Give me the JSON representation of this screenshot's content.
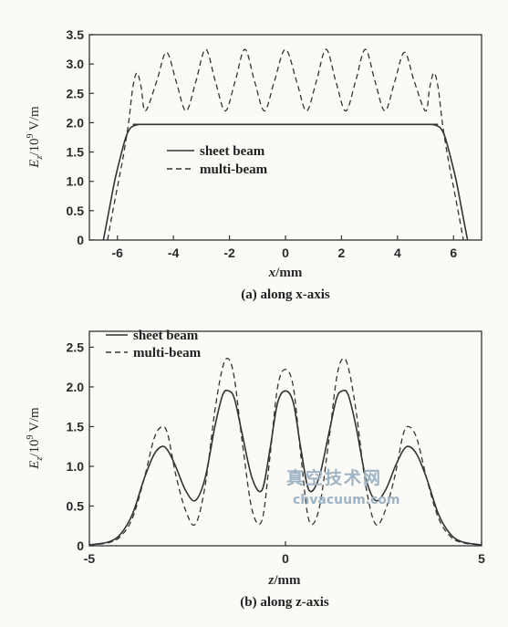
{
  "watermark": {
    "line1": "真空技术网",
    "line2": "chvacuum.com"
  },
  "chart_data": [
    {
      "type": "line",
      "caption": "(a) along x-axis",
      "xlabel_var": "x",
      "xlabel_unit": "/mm",
      "ylabel_var": "E",
      "ylabel_sub": "z",
      "ylabel_unit": "/10",
      "ylabel_exp": "9",
      "ylabel_unit2": " V/m",
      "xlim": [
        -7,
        7
      ],
      "ylim": [
        0,
        3.5
      ],
      "xticks": [
        "-6",
        "-4",
        "-2",
        "0",
        "2",
        "4",
        "6"
      ],
      "xtick_values": [
        -6,
        -4,
        -2,
        0,
        2,
        4,
        6
      ],
      "yticks": [
        "0",
        "0.5",
        "1.0",
        "1.5",
        "2.0",
        "2.5",
        "3.0",
        "3.5"
      ],
      "ytick_values": [
        0,
        0.5,
        1.0,
        1.5,
        2.0,
        2.5,
        3.0,
        3.5
      ],
      "legend_position": "center",
      "series": [
        {
          "name": "sheet beam",
          "style": "solid",
          "x": [
            -6.5,
            -6.3,
            -6.1,
            -5.9,
            -5.7,
            -5.55,
            -5.4,
            -5.2,
            -5.0,
            0,
            5.0,
            5.2,
            5.4,
            5.55,
            5.7,
            5.9,
            6.1,
            6.3,
            6.5
          ],
          "y": [
            0,
            0.5,
            1.0,
            1.4,
            1.75,
            1.9,
            1.95,
            1.97,
            1.97,
            1.97,
            1.97,
            1.97,
            1.95,
            1.9,
            1.75,
            1.4,
            1.0,
            0.5,
            0
          ]
        },
        {
          "name": "multi-beam",
          "style": "dashed",
          "x": [
            -6.35,
            -6.2,
            -6.0,
            -5.8,
            -5.6,
            -5.45,
            -5.3,
            -5.15,
            -5.0,
            -4.6,
            -4.25,
            -3.9,
            -3.55,
            -3.2,
            -2.85,
            -2.5,
            -2.15,
            -1.8,
            -1.45,
            -1.1,
            -0.75,
            -0.4,
            0,
            0.4,
            0.75,
            1.1,
            1.45,
            1.8,
            2.15,
            2.5,
            2.85,
            3.2,
            3.55,
            3.9,
            4.25,
            4.6,
            5.0,
            5.15,
            5.3,
            5.45,
            5.6,
            5.8,
            6.0,
            6.2,
            6.35
          ],
          "y": [
            0,
            0.4,
            0.9,
            1.4,
            2.0,
            2.6,
            2.85,
            2.6,
            2.2,
            2.7,
            3.2,
            2.7,
            2.2,
            2.7,
            3.25,
            2.7,
            2.2,
            2.7,
            3.25,
            2.7,
            2.2,
            2.7,
            3.25,
            2.7,
            2.2,
            2.7,
            3.25,
            2.7,
            2.2,
            2.7,
            3.25,
            2.7,
            2.2,
            2.7,
            3.2,
            2.7,
            2.2,
            2.6,
            2.85,
            2.6,
            2.0,
            1.4,
            0.9,
            0.4,
            0
          ]
        }
      ]
    },
    {
      "type": "line",
      "caption": "(b) along z-axis",
      "xlabel_var": "z",
      "xlabel_unit": "/mm",
      "ylabel_var": "E",
      "ylabel_sub": "z",
      "ylabel_unit": "/10",
      "ylabel_exp": "9",
      "ylabel_unit2": " V/m",
      "xlim": [
        -5,
        5
      ],
      "ylim": [
        0,
        2.7
      ],
      "xticks": [
        "-5",
        "0",
        "5"
      ],
      "xtick_values": [
        -5,
        0,
        5
      ],
      "yticks": [
        "0",
        "0.5",
        "1.0",
        "1.5",
        "2.0",
        "2.5"
      ],
      "ytick_values": [
        0,
        0.5,
        1.0,
        1.5,
        2.0,
        2.5
      ],
      "legend_position": "top-left",
      "series": [
        {
          "name": "sheet beam",
          "style": "solid",
          "x": [
            -5,
            -4.5,
            -4.2,
            -3.9,
            -3.6,
            -3.35,
            -3.15,
            -3.0,
            -2.8,
            -2.55,
            -2.3,
            -2.05,
            -1.8,
            -1.6,
            -1.45,
            -1.3,
            -1.1,
            -0.85,
            -0.6,
            -0.4,
            -0.2,
            0,
            0.2,
            0.4,
            0.6,
            0.85,
            1.1,
            1.3,
            1.45,
            1.6,
            1.8,
            2.05,
            2.3,
            2.55,
            2.8,
            3.0,
            3.15,
            3.35,
            3.6,
            3.9,
            4.2,
            4.5,
            5
          ],
          "y": [
            0.01,
            0.05,
            0.15,
            0.4,
            0.85,
            1.15,
            1.25,
            1.2,
            1.0,
            0.7,
            0.57,
            0.85,
            1.5,
            1.9,
            1.95,
            1.85,
            1.4,
            0.85,
            0.7,
            1.2,
            1.8,
            1.95,
            1.8,
            1.2,
            0.7,
            0.85,
            1.4,
            1.85,
            1.95,
            1.9,
            1.5,
            0.85,
            0.57,
            0.7,
            1.0,
            1.2,
            1.25,
            1.15,
            0.85,
            0.4,
            0.15,
            0.05,
            0.01
          ]
        },
        {
          "name": "multi-beam",
          "style": "dashed",
          "x": [
            -5,
            -4.5,
            -4.2,
            -3.9,
            -3.6,
            -3.35,
            -3.15,
            -3.0,
            -2.8,
            -2.55,
            -2.3,
            -2.05,
            -1.8,
            -1.6,
            -1.45,
            -1.3,
            -1.1,
            -0.85,
            -0.6,
            -0.4,
            -0.2,
            0,
            0.2,
            0.4,
            0.6,
            0.85,
            1.1,
            1.3,
            1.45,
            1.6,
            1.8,
            2.05,
            2.3,
            2.55,
            2.8,
            3.0,
            3.15,
            3.35,
            3.6,
            3.9,
            4.2,
            4.5,
            5
          ],
          "y": [
            0.01,
            0.04,
            0.12,
            0.35,
            0.85,
            1.35,
            1.5,
            1.4,
            0.9,
            0.45,
            0.27,
            0.75,
            1.7,
            2.25,
            2.35,
            2.1,
            1.3,
            0.45,
            0.32,
            1.1,
            2.0,
            2.22,
            2.0,
            1.1,
            0.32,
            0.45,
            1.3,
            2.1,
            2.35,
            2.25,
            1.7,
            0.75,
            0.27,
            0.45,
            0.9,
            1.4,
            1.5,
            1.35,
            0.85,
            0.35,
            0.12,
            0.04,
            0.01
          ]
        }
      ]
    }
  ]
}
